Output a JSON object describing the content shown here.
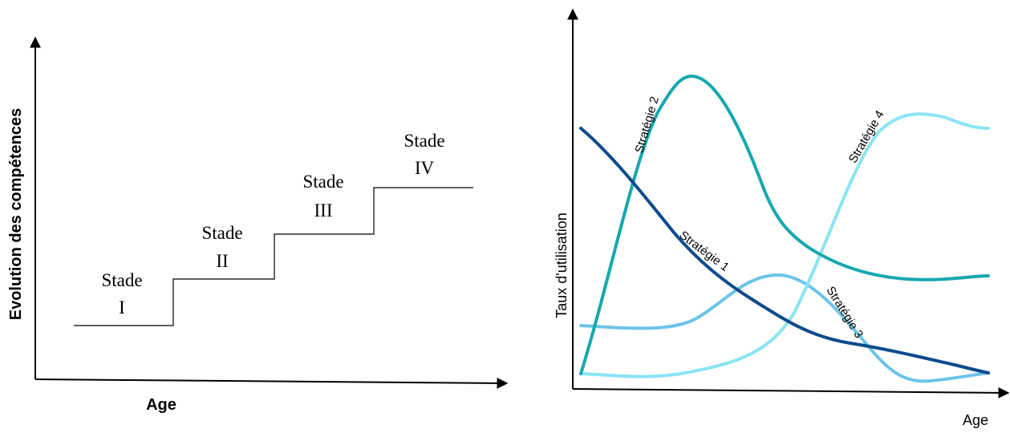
{
  "left": {
    "ylabel": "Evolution des compétences",
    "xlabel": "Age",
    "stages": [
      {
        "word": "Stade",
        "numeral": "I"
      },
      {
        "word": "Stade",
        "numeral": "II"
      },
      {
        "word": "Stade",
        "numeral": "III"
      },
      {
        "word": "Stade",
        "numeral": "IV"
      }
    ]
  },
  "right": {
    "ylabel": "Taux d'utilisation",
    "xlabel": "Age",
    "strategies": [
      {
        "label": "Stratégie 1",
        "color": "#0d4a8c"
      },
      {
        "label": "Stratégie 2",
        "color": "#16a8ae"
      },
      {
        "label": "Stratégie 3",
        "color": "#6cc4e8"
      },
      {
        "label": "Stratégie 4",
        "color": "#8ae4f4"
      }
    ]
  }
}
